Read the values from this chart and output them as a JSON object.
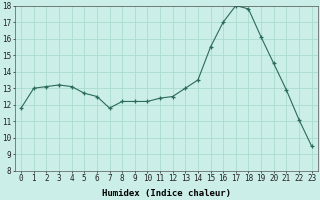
{
  "x": [
    0,
    1,
    2,
    3,
    4,
    5,
    6,
    7,
    8,
    9,
    10,
    11,
    12,
    13,
    14,
    15,
    16,
    17,
    18,
    19,
    20,
    21,
    22,
    23
  ],
  "y": [
    11.8,
    13.0,
    13.1,
    13.2,
    13.1,
    12.7,
    12.5,
    11.8,
    12.2,
    12.2,
    12.2,
    12.4,
    12.5,
    13.0,
    13.5,
    15.5,
    17.0,
    18.0,
    17.8,
    16.1,
    14.5,
    12.9,
    11.1,
    9.5
  ],
  "background_color": "#cceee8",
  "grid_color": "#aaddcc",
  "line_color": "#2a6b5a",
  "marker_color": "#2a6b5a",
  "xlabel": "Humidex (Indice chaleur)",
  "ylim": [
    8,
    18
  ],
  "xlim": [
    -0.5,
    23.5
  ],
  "yticks": [
    8,
    9,
    10,
    11,
    12,
    13,
    14,
    15,
    16,
    17,
    18
  ],
  "xticks": [
    0,
    1,
    2,
    3,
    4,
    5,
    6,
    7,
    8,
    9,
    10,
    11,
    12,
    13,
    14,
    15,
    16,
    17,
    18,
    19,
    20,
    21,
    22,
    23
  ],
  "xtick_labels": [
    "0",
    "1",
    "2",
    "3",
    "4",
    "5",
    "6",
    "7",
    "8",
    "9",
    "10",
    "11",
    "12",
    "13",
    "14",
    "15",
    "16",
    "17",
    "18",
    "19",
    "20",
    "21",
    "22",
    "23"
  ],
  "font_family": "monospace",
  "xlabel_fontsize": 6.5,
  "tick_fontsize": 5.5
}
